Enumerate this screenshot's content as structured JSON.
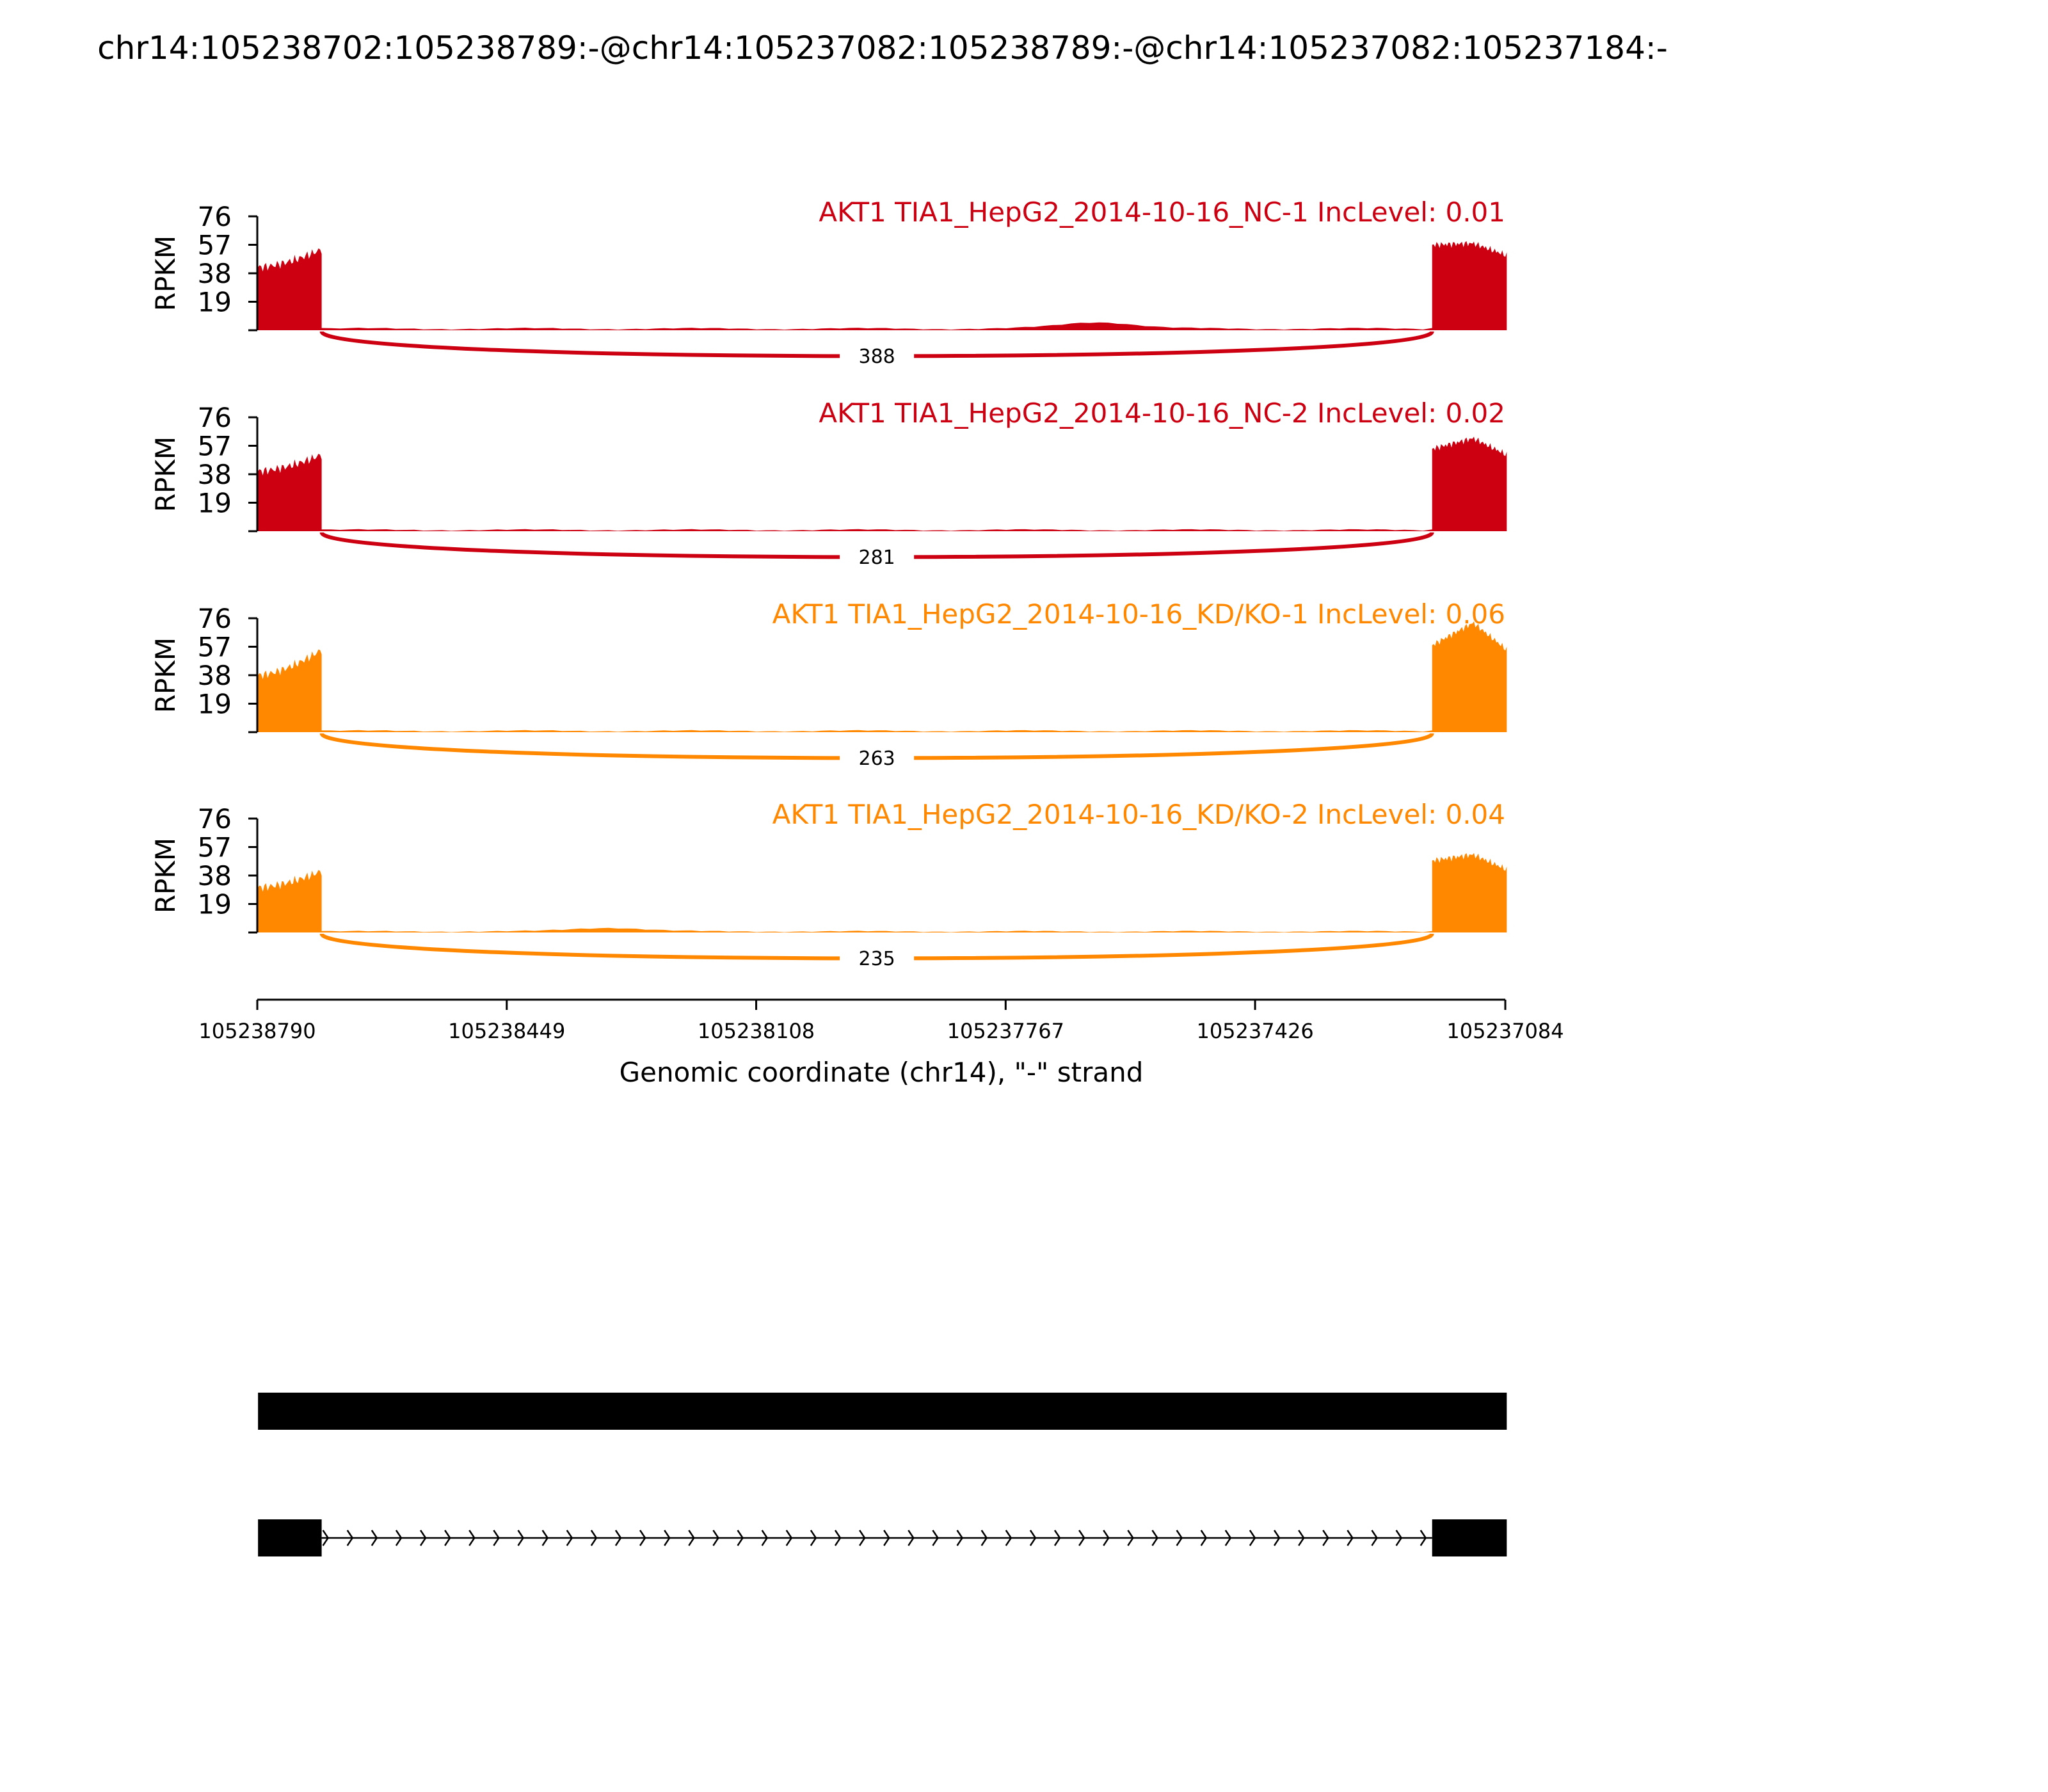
{
  "figure": {
    "title": "chr14:105238702:105238789:-@chr14:105237082:105238789:-@chr14:105237082:105237184:-"
  },
  "colors": {
    "nc": "#cc0011",
    "kd": "#ff8800",
    "text": "#000000"
  },
  "chart_data": {
    "type": "area",
    "title": "chr14:105238702:105238789:-@chr14:105237082:105238789:-@chr14:105237082:105237184:-",
    "xlabel": "Genomic coordinate (chr14), \"-\" strand",
    "ylabel": "RPKM",
    "x_reversed": true,
    "xlim": [
      105238790,
      105237084
    ],
    "x_ticks": [
      105238790,
      105238449,
      105238108,
      105237767,
      105237426,
      105237084
    ],
    "x_tick_labels": [
      "105238790",
      "105238449",
      "105238108",
      "105237767",
      "105237426",
      "105237084"
    ],
    "ylim": [
      0,
      76
    ],
    "y_ticks": [
      19,
      38,
      57,
      76
    ],
    "y_tick_labels": [
      "19",
      "38",
      "57",
      "76"
    ],
    "exon_upstream": [
      105238789,
      105238702
    ],
    "exon_downstream": [
      105237184,
      105237082
    ],
    "series": [
      {
        "name": "AKT1 TIA1_HepG2_2014-10-16_NC-1 IncLevel: 0.01",
        "color": "#cc0011",
        "junction_count": "388",
        "left_exon": {
          "start": 42,
          "end": 54
        },
        "right_exon": {
          "start": 57,
          "peak": 58,
          "end": 50
        },
        "intron_level": 1.5,
        "intron_bump": {
          "center": 105237640,
          "height": 4.5
        }
      },
      {
        "name": "AKT1 TIA1_HepG2_2014-10-16_NC-2 IncLevel: 0.02",
        "color": "#cc0011",
        "junction_count": "281",
        "left_exon": {
          "start": 40,
          "end": 51
        },
        "right_exon": {
          "start": 55,
          "peak": 62,
          "end": 51
        },
        "intron_level": 1.2,
        "intron_bump": null
      },
      {
        "name": "AKT1 TIA1_HepG2_2014-10-16_KD/KO-1 IncLevel: 0.06",
        "color": "#ff8800",
        "junction_count": "263",
        "left_exon": {
          "start": 38,
          "end": 55
        },
        "right_exon": {
          "start": 58,
          "peak": 73,
          "end": 55
        },
        "intron_level": 1.2,
        "intron_bump": null
      },
      {
        "name": "AKT1 TIA1_HepG2_2014-10-16_KD/KO-2 IncLevel: 0.04",
        "color": "#ff8800",
        "junction_count": "235",
        "left_exon": {
          "start": 30,
          "end": 41
        },
        "right_exon": {
          "start": 48,
          "peak": 52,
          "end": 42
        },
        "intron_level": 1.0,
        "intron_bump": {
          "center": 105238310,
          "height": 2.5
        }
      }
    ],
    "transcripts": [
      {
        "kind": "full",
        "blocks": [
          [
            105238789,
            105237082
          ]
        ]
      },
      {
        "kind": "skipping",
        "blocks": [
          [
            105238789,
            105238702
          ],
          [
            105237184,
            105237082
          ]
        ],
        "strand_arrows": 46
      }
    ]
  }
}
